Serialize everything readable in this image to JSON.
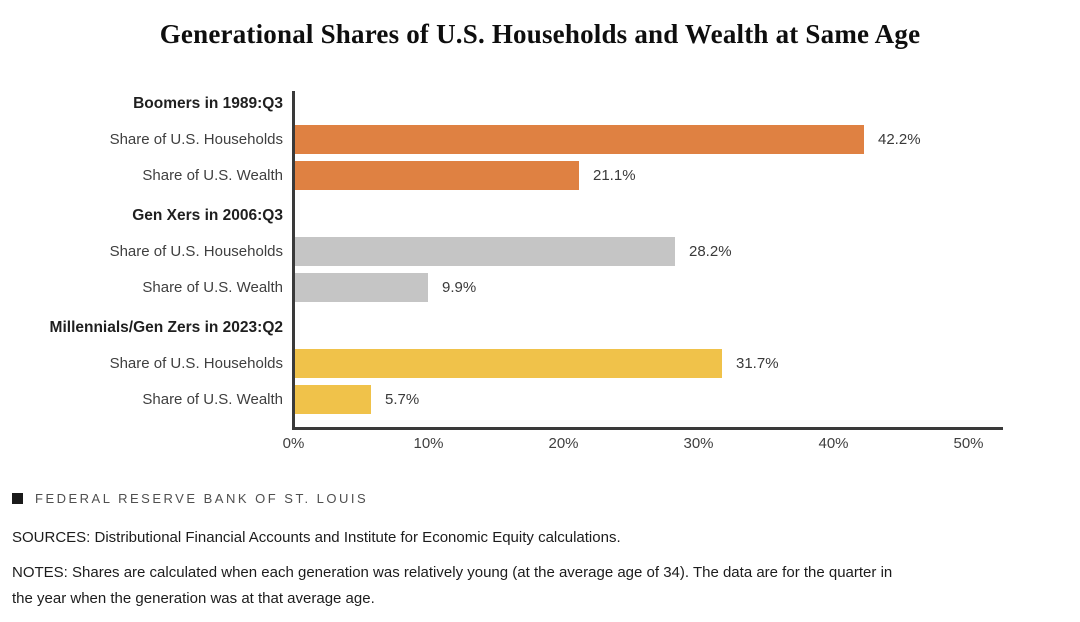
{
  "chart_data": {
    "type": "bar",
    "orientation": "horizontal",
    "title": "Generational Shares of U.S. Households and Wealth at Same Age",
    "xlabel": "",
    "ylabel": "",
    "xlim": [
      0,
      50
    ],
    "x_ticks": [
      "0%",
      "10%",
      "20%",
      "30%",
      "40%",
      "50%"
    ],
    "x_tick_values": [
      0,
      10,
      20,
      30,
      40,
      50
    ],
    "grid": false,
    "legend": "none",
    "axis_color": "#3a3a3a",
    "groups": [
      {
        "label": "Boomers in 1989:Q3",
        "color": "#df8142",
        "bars": [
          {
            "label": "Share of U.S. Households",
            "value": 42.2,
            "value_label": "42.2%"
          },
          {
            "label": "Share of U.S. Wealth",
            "value": 21.1,
            "value_label": "21.1%"
          }
        ]
      },
      {
        "label": "Gen Xers in 2006:Q3",
        "color": "#c5c5c5",
        "bars": [
          {
            "label": "Share of U.S. Households",
            "value": 28.2,
            "value_label": "28.2%"
          },
          {
            "label": "Share of U.S. Wealth",
            "value": 9.9,
            "value_label": "9.9%"
          }
        ]
      },
      {
        "label": "Millennials/Gen Zers in 2023:Q2",
        "color": "#f0c24a",
        "bars": [
          {
            "label": "Share of U.S. Households",
            "value": 31.7,
            "value_label": "31.7%"
          },
          {
            "label": "Share of U.S. Wealth",
            "value": 5.7,
            "value_label": "5.7%"
          }
        ]
      }
    ]
  },
  "footer": {
    "brand": "FEDERAL RESERVE BANK OF ST. LOUIS",
    "brand_icon": "filled-square-icon",
    "sources": "SOURCES: Distributional Financial Accounts and Institute for Economic Equity calculations.",
    "notes": "NOTES: Shares are calculated when each generation was relatively young (at the average age of 34). The data are for the quarter in the year when the generation was at that average age."
  }
}
